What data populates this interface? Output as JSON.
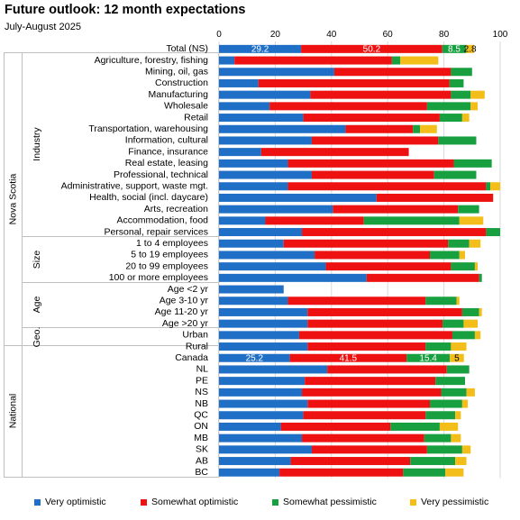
{
  "title": "Future outlook: 12 month expectations",
  "subtitle": "July-August 2025",
  "colors": {
    "very_optimistic": "#1f6fc6",
    "somewhat_optimistic": "#ee1111",
    "somewhat_pessimistic": "#18a040",
    "very_pessimistic": "#f4be1a"
  },
  "legend": [
    "Very optimistic",
    "Somewhat optimistic",
    "Somewhat pessimistic",
    "Very pessimistic"
  ],
  "chart_data": {
    "type": "bar",
    "orientation": "horizontal",
    "stacked": true,
    "xlim": [
      0,
      100
    ],
    "xticks": [
      0,
      20,
      40,
      60,
      80,
      100
    ],
    "grid": true,
    "legend_position": "bottom",
    "groups": [
      {
        "label": "Nova Scotia",
        "subgroups": [
          {
            "label": "",
            "rows": [
              "Total (NS)"
            ]
          },
          {
            "label": "Industry",
            "rows": [
              "Agriculture, forestry, fishing",
              "Mining, oil, gas",
              "Construction",
              "Manufacturing",
              "Wholesale",
              "Retail",
              "Transportation, warehousing",
              "Information, cultural",
              "Finance, insurance",
              "Real estate, leasing",
              "Professional, technical",
              "Administrative, support, waste mgt.",
              "Health, social (incl. daycare)",
              "Arts, recreation",
              "Accommodation, food",
              "Personal, repair services"
            ]
          },
          {
            "label": "Size",
            "rows": [
              "1 to 4 employees",
              "5 to 19 employees",
              "20 to 99 employees",
              "100 or more employees"
            ]
          },
          {
            "label": "Age",
            "rows": [
              "Age <2 yr",
              "Age 3-10 yr",
              "Age 11-20 yr",
              "Age >20 yr"
            ]
          },
          {
            "label": "Geo.",
            "rows": [
              "Urban",
              "Rural"
            ]
          }
        ]
      },
      {
        "label": "National",
        "subgroups": [
          {
            "label": "",
            "rows": [
              "Canada",
              "NL",
              "PE",
              "NS",
              "NB",
              "QC",
              "ON",
              "MB",
              "SK",
              "AB",
              "BC"
            ]
          }
        ]
      }
    ],
    "categories": [
      "Total (NS)",
      "Agriculture, forestry, fishing",
      "Mining, oil, gas",
      "Construction",
      "Manufacturing",
      "Wholesale",
      "Retail",
      "Transportation, warehousing",
      "Information, cultural",
      "Finance, insurance",
      "Real estate, leasing",
      "Professional, technical",
      "Administrative, support, waste mgt.",
      "Health, social (incl. daycare)",
      "Arts, recreation",
      "Accommodation, food",
      "Personal, repair services",
      "1 to 4 employees",
      "5 to 19 employees",
      "20 to 99 employees",
      "100 or more employees",
      "Age <2 yr",
      "Age 3-10 yr",
      "Age 11-20 yr",
      "Age >20 yr",
      "Urban",
      "Rural",
      "Canada",
      "NL",
      "PE",
      "NS",
      "NB",
      "QC",
      "ON",
      "MB",
      "SK",
      "AB",
      "BC"
    ],
    "series": [
      {
        "name": "Very optimistic",
        "values": [
          29.2,
          5.5,
          41,
          14,
          32.5,
          18,
          30,
          45,
          33,
          15,
          24.5,
          33,
          24.5,
          56,
          40.5,
          16.5,
          29.5,
          23,
          34,
          38,
          52.5,
          23,
          24.5,
          31.5,
          31.5,
          28.5,
          31.5,
          25.2,
          38.5,
          30.5,
          29.5,
          31.5,
          30,
          22,
          29.5,
          33,
          25.5,
          21.5
        ]
      },
      {
        "name": "Somewhat optimistic",
        "values": [
          50.2,
          56,
          41.5,
          68,
          50,
          56,
          48.5,
          24,
          45,
          52.5,
          59,
          43.5,
          70.5,
          41.5,
          44.5,
          35,
          65.5,
          58.5,
          41,
          44.5,
          40,
          0,
          49,
          55,
          48,
          54.5,
          42,
          41.5,
          42.5,
          46.5,
          49.5,
          43.5,
          43.5,
          39,
          43.5,
          41,
          42.5,
          44
        ]
      },
      {
        "name": "Somewhat pessimistic",
        "values": [
          8.5,
          3,
          7.5,
          5,
          7,
          15.5,
          8,
          2.5,
          13.5,
          0,
          13.5,
          15,
          1.5,
          0,
          7.5,
          34,
          5,
          7.5,
          10.5,
          8.5,
          1,
          0,
          11,
          6,
          7.5,
          8,
          9,
          15.4,
          8,
          10.5,
          9,
          11.5,
          10.5,
          17.5,
          9.5,
          12.5,
          16,
          15
        ]
      },
      {
        "name": "Very pessimistic",
        "values": [
          2.8,
          13.5,
          0,
          0,
          5,
          2.5,
          2.5,
          6,
          0,
          0,
          0,
          0,
          3.5,
          0,
          0,
          8.5,
          0,
          4,
          2,
          1,
          0,
          0,
          1,
          1,
          5,
          2,
          5.5,
          5,
          0,
          0,
          3,
          2,
          2,
          6.5,
          3.5,
          3,
          4,
          6.5
        ]
      }
    ],
    "data_labels": [
      {
        "category": "Total (NS)",
        "values": [
          "29.2",
          "50.2",
          "8.5",
          "2.8"
        ]
      },
      {
        "category": "Canada",
        "values": [
          "25.2",
          "41.5",
          "15.4",
          "5"
        ]
      }
    ]
  }
}
